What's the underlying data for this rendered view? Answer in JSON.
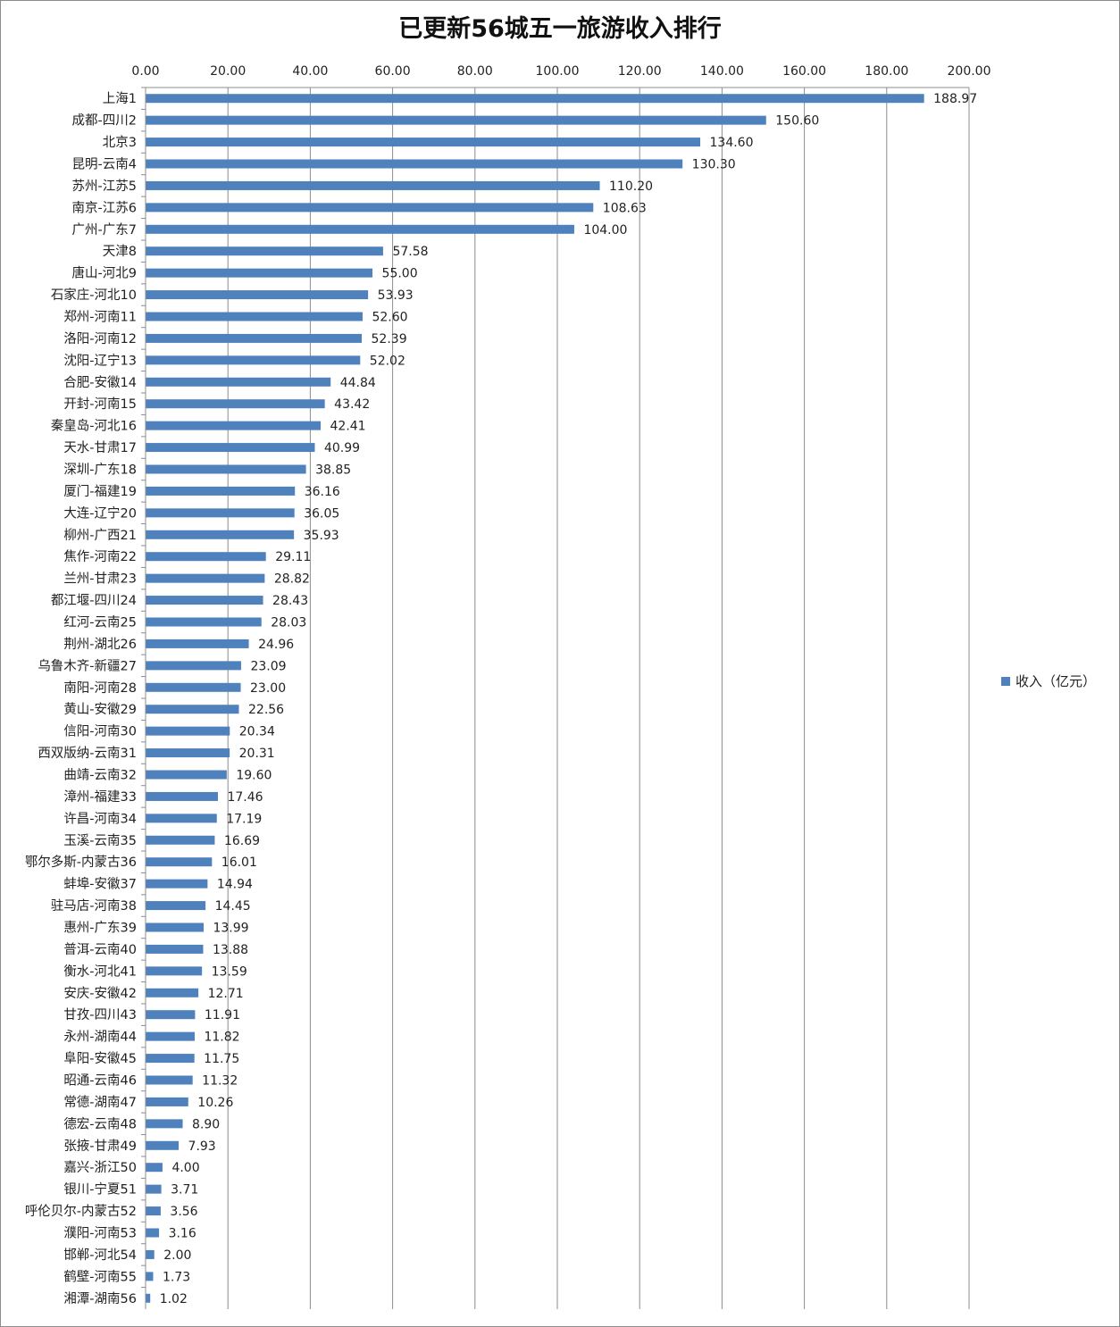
{
  "chart_data": {
    "type": "bar",
    "orientation": "horizontal",
    "title": "已更新56城五一旅游收入排行",
    "xlim": [
      0,
      200
    ],
    "x_ticks": [
      "0.00",
      "20.00",
      "40.00",
      "60.00",
      "80.00",
      "100.00",
      "120.00",
      "140.00",
      "160.00",
      "180.00",
      "200.00"
    ],
    "grid": true,
    "legend_position": "right",
    "series": [
      {
        "name": "收入（亿元）",
        "color": "#4f81bd",
        "values": [
          188.97,
          150.6,
          134.6,
          130.3,
          110.2,
          108.63,
          104.0,
          57.58,
          55.0,
          53.93,
          52.6,
          52.39,
          52.02,
          44.84,
          43.42,
          42.41,
          40.99,
          38.85,
          36.16,
          36.05,
          35.93,
          29.11,
          28.82,
          28.43,
          28.03,
          24.96,
          23.09,
          23.0,
          22.56,
          20.34,
          20.31,
          19.6,
          17.46,
          17.19,
          16.69,
          16.01,
          14.94,
          14.45,
          13.99,
          13.88,
          13.59,
          12.71,
          11.91,
          11.82,
          11.75,
          11.32,
          10.26,
          8.9,
          7.93,
          4.0,
          3.71,
          3.56,
          3.16,
          2.0,
          1.73,
          1.02
        ],
        "labels": [
          "188.97",
          "150.60",
          "134.60",
          "130.30",
          "110.20",
          "108.63",
          "104.00",
          "57.58",
          "55.00",
          "53.93",
          "52.60",
          "52.39",
          "52.02",
          "44.84",
          "43.42",
          "42.41",
          "40.99",
          "38.85",
          "36.16",
          "36.05",
          "35.93",
          "29.11",
          "28.82",
          "28.43",
          "28.03",
          "24.96",
          "23.09",
          "23.00",
          "22.56",
          "20.34",
          "20.31",
          "19.60",
          "17.46",
          "17.19",
          "16.69",
          "16.01",
          "14.94",
          "14.45",
          "13.99",
          "13.88",
          "13.59",
          "12.71",
          "11.91",
          "11.82",
          "11.75",
          "11.32",
          "10.26",
          "8.90",
          "7.93",
          "4.00",
          "3.71",
          "3.56",
          "3.16",
          "2.00",
          "1.73",
          "1.02"
        ]
      }
    ],
    "categories": [
      "上海1",
      "成都-四川2",
      "北京3",
      "昆明-云南4",
      "苏州-江苏5",
      "南京-江苏6",
      "广州-广东7",
      "天津8",
      "唐山-河北9",
      "石家庄-河北10",
      "郑州-河南11",
      "洛阳-河南12",
      "沈阳-辽宁13",
      "合肥-安徽14",
      "开封-河南15",
      "秦皇岛-河北16",
      "天水-甘肃17",
      "深圳-广东18",
      "厦门-福建19",
      "大连-辽宁20",
      "柳州-广西21",
      "焦作-河南22",
      "兰州-甘肃23",
      "都江堰-四川24",
      "红河-云南25",
      "荆州-湖北26",
      "乌鲁木齐-新疆27",
      "南阳-河南28",
      "黄山-安徽29",
      "信阳-河南30",
      "西双版纳-云南31",
      "曲靖-云南32",
      "漳州-福建33",
      "许昌-河南34",
      "玉溪-云南35",
      "鄂尔多斯-内蒙古36",
      "蚌埠-安徽37",
      "驻马店-河南38",
      "惠州-广东39",
      "普洱-云南40",
      "衡水-河北41",
      "安庆-安徽42",
      "甘孜-四川43",
      "永州-湖南44",
      "阜阳-安徽45",
      "昭通-云南46",
      "常德-湖南47",
      "德宏-云南48",
      "张掖-甘肃49",
      "嘉兴-浙江50",
      "银川-宁夏51",
      "呼伦贝尔-内蒙古52",
      "濮阳-河南53",
      "邯郸-河北54",
      "鹤壁-河南55",
      "湘潭-湖南56"
    ]
  }
}
